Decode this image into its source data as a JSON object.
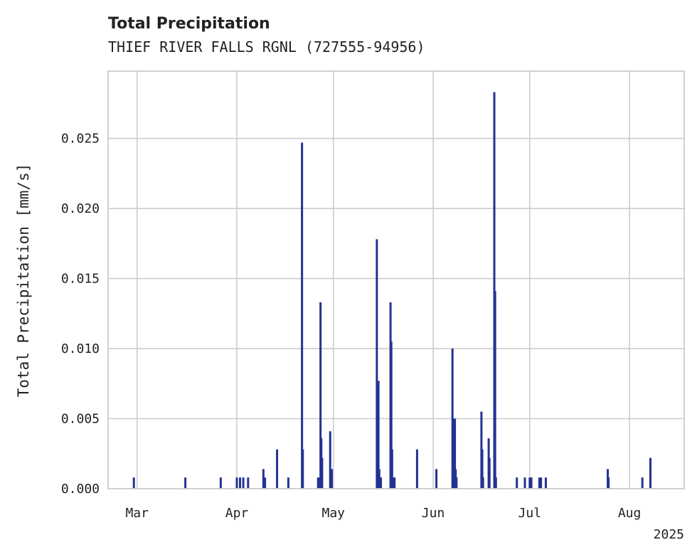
{
  "chart_data": {
    "type": "bar",
    "title": "Total Precipitation",
    "subtitle": "THIEF RIVER FALLS RGNL (727555-94956)",
    "ylabel": "Total Precipitation [mm/s]",
    "xlabel": "",
    "year_label": "2025",
    "color": "#233292",
    "grid": true,
    "xlim": [
      "2025-02-20",
      "2025-08-18"
    ],
    "ylim": [
      0,
      0.0298
    ],
    "yticks": [
      0.0,
      0.005,
      0.01,
      0.015,
      0.02,
      0.025
    ],
    "ytick_labels": [
      "0.000",
      "0.005",
      "0.010",
      "0.015",
      "0.020",
      "0.025"
    ],
    "xticks": [
      "2025-03-01",
      "2025-04-01",
      "2025-05-01",
      "2025-06-01",
      "2025-07-01",
      "2025-08-01"
    ],
    "xtick_labels": [
      "Mar",
      "Apr",
      "May",
      "Jun",
      "Jul",
      "Aug"
    ],
    "x": [
      "2025-02-28T00:00",
      "2025-03-16T00:00",
      "2025-03-27T00:00",
      "2025-04-01T00:00",
      "2025-04-02T00:00",
      "2025-04-03T00:00",
      "2025-04-04T12:00",
      "2025-04-09T06:00",
      "2025-04-09T18:00",
      "2025-04-13T12:00",
      "2025-04-17T00:00",
      "2025-04-21T06:00",
      "2025-04-21T12:00",
      "2025-04-26T06:00",
      "2025-04-26T18:00",
      "2025-04-27T00:00",
      "2025-04-27T06:00",
      "2025-04-27T12:00",
      "2025-04-30T00:00",
      "2025-04-30T12:00",
      "2025-05-14T12:00",
      "2025-05-14T18:00",
      "2025-05-15T00:00",
      "2025-05-15T06:00",
      "2025-05-15T12:00",
      "2025-05-15T18:00",
      "2025-05-18T18:00",
      "2025-05-19T00:00",
      "2025-05-19T06:00",
      "2025-05-19T12:00",
      "2025-05-20T00:00",
      "2025-05-27T00:00",
      "2025-06-02T00:00",
      "2025-06-07T00:00",
      "2025-06-07T06:00",
      "2025-06-07T12:00",
      "2025-06-07T18:00",
      "2025-06-08T00:00",
      "2025-06-08T06:00",
      "2025-06-16T00:00",
      "2025-06-16T06:00",
      "2025-06-16T12:00",
      "2025-06-18T06:00",
      "2025-06-18T12:00",
      "2025-06-20T00:00",
      "2025-06-20T06:00",
      "2025-06-20T12:00",
      "2025-06-27T00:00",
      "2025-06-29T12:00",
      "2025-07-01T00:00",
      "2025-07-01T12:00",
      "2025-07-04T00:00",
      "2025-07-04T12:00",
      "2025-07-06T00:00",
      "2025-07-25T06:00",
      "2025-07-25T12:00",
      "2025-08-05T00:00",
      "2025-08-07T12:00"
    ],
    "values": [
      0.0008,
      0.0008,
      0.0008,
      0.0008,
      0.0008,
      0.0008,
      0.0008,
      0.0014,
      0.0008,
      0.0028,
      0.0008,
      0.0247,
      0.0028,
      0.0008,
      0.0008,
      0.0133,
      0.0036,
      0.0022,
      0.0041,
      0.0014,
      0.0178,
      0.0028,
      0.0077,
      0.0014,
      0.0008,
      0.0008,
      0.0133,
      0.0105,
      0.0028,
      0.0008,
      0.0008,
      0.0028,
      0.0014,
      0.01,
      0.005,
      0.0022,
      0.005,
      0.0014,
      0.0008,
      0.0055,
      0.0028,
      0.0008,
      0.0036,
      0.0022,
      0.0283,
      0.0141,
      0.0008,
      0.0008,
      0.0008,
      0.0008,
      0.0008,
      0.0008,
      0.0008,
      0.0008,
      0.0014,
      0.0008,
      0.0008,
      0.0022
    ]
  }
}
